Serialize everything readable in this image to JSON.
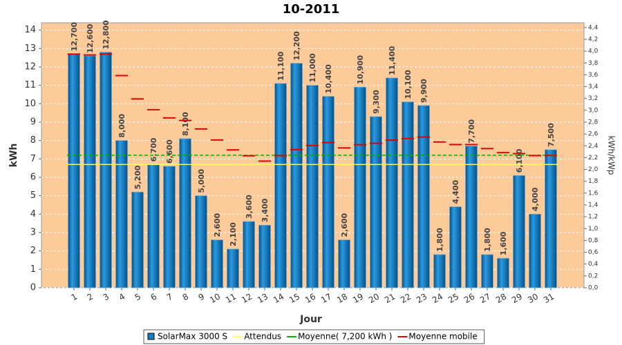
{
  "chart_data": {
    "type": "bar",
    "title": "10-2011",
    "xlabel": "Jour",
    "ylabel": "kWh",
    "y2label": "kWh/kWp",
    "categories": [
      "1",
      "2",
      "3",
      "4",
      "5",
      "6",
      "7",
      "8",
      "9",
      "10",
      "11",
      "12",
      "13",
      "14",
      "15",
      "16",
      "17",
      "18",
      "19",
      "20",
      "21",
      "22",
      "23",
      "24",
      "25",
      "26",
      "27",
      "28",
      "29",
      "30",
      "31"
    ],
    "series": [
      {
        "name": "SolarMax 3000 S",
        "type": "bar",
        "color": "#1a7fc1",
        "values": [
          12.7,
          12.6,
          12.8,
          8.0,
          5.2,
          6.7,
          6.6,
          8.1,
          5.0,
          2.6,
          2.1,
          3.6,
          3.4,
          11.1,
          12.2,
          11.0,
          10.4,
          2.6,
          10.9,
          9.3,
          11.4,
          10.1,
          9.9,
          1.8,
          4.4,
          7.7,
          1.8,
          1.6,
          6.1,
          4.0,
          7.5
        ],
        "value_labels": [
          "12,700",
          "12,600",
          "12,800",
          "8,000",
          "5,200",
          "6,700",
          "6,600",
          "8,100",
          "5,000",
          "2,600",
          "2,100",
          "3,600",
          "3,400",
          "11,100",
          "12,200",
          "11,000",
          "10,400",
          "2,600",
          "10,900",
          "9,300",
          "11,400",
          "10,100",
          "9,900",
          "1,800",
          "4,400",
          "7,700",
          "1,800",
          "1,600",
          "6,100",
          "4,000",
          "7,500"
        ]
      },
      {
        "name": "Attendus",
        "type": "hline",
        "color": "#ffff66",
        "value": 6.7
      },
      {
        "name": "Moyenne( 7,200 kWh )",
        "type": "hline",
        "color": "#00b000",
        "value": 7.2
      },
      {
        "name": "Moyenne mobile",
        "type": "dash",
        "color": "#e00000",
        "values": [
          12.7,
          12.65,
          12.7,
          11.53,
          10.26,
          9.67,
          9.23,
          9.09,
          8.63,
          8.03,
          7.49,
          7.17,
          6.88,
          7.18,
          7.51,
          7.73,
          7.89,
          7.6,
          7.77,
          7.85,
          8.02,
          8.11,
          8.19,
          7.92,
          7.78,
          7.78,
          7.56,
          7.34,
          7.29,
          7.18,
          7.19
        ]
      }
    ],
    "ylim": [
      0,
      14.4
    ],
    "yticks": [
      0,
      1,
      2,
      3,
      4,
      5,
      6,
      7,
      8,
      9,
      10,
      11,
      12,
      13,
      14
    ],
    "y2lim": [
      0,
      4.48
    ],
    "y2ticks": [
      {
        "value": 0,
        "label": "0,0"
      },
      {
        "value": 0.2,
        "label": "0,2"
      },
      {
        "value": 0.4,
        "label": "0,4"
      },
      {
        "value": 0.6,
        "label": "0,6"
      },
      {
        "value": 0.8,
        "label": "0,8"
      },
      {
        "value": 1,
        "label": "1,0"
      },
      {
        "value": 1.2,
        "label": "1,2"
      },
      {
        "value": 1.4,
        "label": "1,4"
      },
      {
        "value": 1.6,
        "label": "1,6"
      },
      {
        "value": 1.8,
        "label": "1,8"
      },
      {
        "value": 2,
        "label": "2,0"
      },
      {
        "value": 2.2,
        "label": "2,2"
      },
      {
        "value": 2.4,
        "label": "2,4"
      },
      {
        "value": 2.6,
        "label": "2,6"
      },
      {
        "value": 2.8,
        "label": "2,8"
      },
      {
        "value": 3,
        "label": "3,0"
      },
      {
        "value": 3.2,
        "label": "3,2"
      },
      {
        "value": 3.4,
        "label": "3,4"
      },
      {
        "value": 3.6,
        "label": "3,6"
      },
      {
        "value": 3.8,
        "label": "3,8"
      },
      {
        "value": 4,
        "label": "4,0"
      },
      {
        "value": 4.2,
        "label": "4,2"
      },
      {
        "value": 4.4,
        "label": "4,4"
      }
    ],
    "grid": true,
    "legend": "bottom"
  }
}
